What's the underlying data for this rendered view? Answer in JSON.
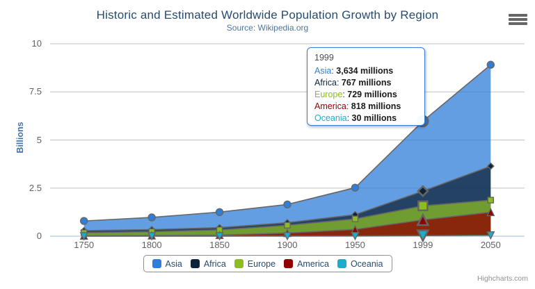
{
  "header": {
    "title": "Historic and Estimated Worldwide Population Growth by Region",
    "subtitle": "Source: Wikipedia.org"
  },
  "icons": {
    "export_menu": "hamburger-icon"
  },
  "chart_data": {
    "type": "area",
    "stacking": "normal",
    "title": "Historic and Estimated Worldwide Population Growth by Region",
    "subtitle": "Source: Wikipedia.org",
    "categories": [
      "1750",
      "1800",
      "1850",
      "1900",
      "1950",
      "1999",
      "2050"
    ],
    "series": [
      {
        "name": "Asia",
        "color": "#2f7ed8",
        "marker": "circle",
        "values": [
          502,
          635,
          809,
          947,
          1402,
          3634,
          5268
        ]
      },
      {
        "name": "Africa",
        "color": "#0d233a",
        "marker": "diamond",
        "values": [
          106,
          107,
          111,
          133,
          221,
          767,
          1766
        ]
      },
      {
        "name": "Europe",
        "color": "#8bbc21",
        "marker": "square",
        "values": [
          163,
          203,
          276,
          408,
          547,
          729,
          628
        ]
      },
      {
        "name": "America",
        "color": "#910000",
        "marker": "triangle",
        "values": [
          18,
          31,
          54,
          156,
          339,
          818,
          1201
        ]
      },
      {
        "name": "Oceania",
        "color": "#1aadce",
        "marker": "triangle-down",
        "values": [
          2,
          2,
          2,
          6,
          13,
          30,
          46
        ]
      }
    ],
    "values_unit": "millions",
    "ylabel": "Billions",
    "yticks": [
      0,
      2.5,
      5,
      7.5,
      10
    ],
    "ylim": [
      0,
      10
    ],
    "grid": true,
    "grid_color": "#C0C0C0",
    "axis_line_color": "#C0D0E0",
    "line_color": "#666666",
    "fill_opacity": 0.75,
    "hover_index": 5,
    "legend_position": "bottom"
  },
  "tooltip": {
    "header": "1999",
    "border_color": "#2f7ed8",
    "rows": [
      {
        "name": "Asia",
        "color": "#2f7ed8",
        "value": "3,634 millions"
      },
      {
        "name": "Africa",
        "color": "#0d233a",
        "value": "767 millions"
      },
      {
        "name": "Europe",
        "color": "#8bbc21",
        "value": "729 millions"
      },
      {
        "name": "America",
        "color": "#910000",
        "value": "818 millions"
      },
      {
        "name": "Oceania",
        "color": "#1aadce",
        "value": "30 millions"
      }
    ]
  },
  "credits": "Highcharts.com"
}
